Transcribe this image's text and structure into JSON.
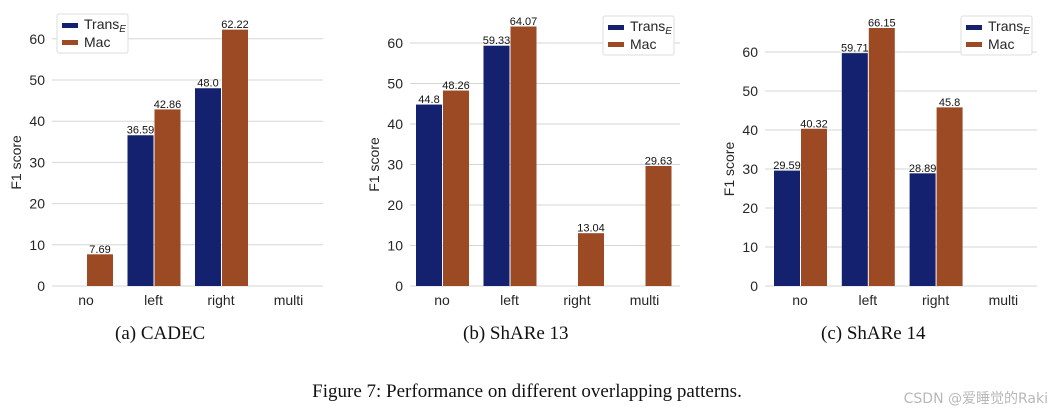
{
  "chart_data": [
    {
      "type": "bar",
      "title": "(a) CADEC",
      "xlabel": "",
      "ylabel": "F1 score",
      "categories": [
        "no",
        "left",
        "right",
        "multi"
      ],
      "series": [
        {
          "name": "Trans_E",
          "color": "#13216e",
          "values": [
            0,
            36.59,
            48.0,
            0
          ],
          "labels": [
            "",
            "36.59",
            "48.0",
            ""
          ]
        },
        {
          "name": "Mac",
          "color": "#9c4a24",
          "values": [
            7.69,
            42.86,
            62.22,
            0
          ],
          "labels": [
            "7.69",
            "42.86",
            "62.22",
            ""
          ]
        }
      ],
      "yticks": [
        0,
        10,
        20,
        30,
        40,
        50,
        60
      ],
      "ylim": [
        0,
        65
      ],
      "grid": true,
      "legend": "top-left"
    },
    {
      "type": "bar",
      "title": "(b) ShARe 13",
      "xlabel": "",
      "ylabel": "F1 score",
      "categories": [
        "no",
        "left",
        "right",
        "multi"
      ],
      "series": [
        {
          "name": "Trans_E",
          "color": "#13216e",
          "values": [
            44.8,
            59.33,
            0,
            0
          ],
          "labels": [
            "44.8",
            "59.33",
            "",
            ""
          ]
        },
        {
          "name": "Mac",
          "color": "#9c4a24",
          "values": [
            48.26,
            64.07,
            13.04,
            29.63
          ],
          "labels": [
            "48.26",
            "64.07",
            "13.04",
            "29.63"
          ]
        }
      ],
      "yticks": [
        0,
        10,
        20,
        30,
        40,
        50,
        60
      ],
      "ylim": [
        0,
        66
      ],
      "grid": true,
      "legend": "top-right"
    },
    {
      "type": "bar",
      "title": "(c) ShARe 14",
      "xlabel": "",
      "ylabel": "F1 score",
      "categories": [
        "no",
        "left",
        "right",
        "multi"
      ],
      "series": [
        {
          "name": "Trans_E",
          "color": "#13216e",
          "values": [
            29.59,
            59.71,
            28.89,
            0
          ],
          "labels": [
            "29.59",
            "59.71",
            "28.89",
            ""
          ]
        },
        {
          "name": "Mac",
          "color": "#9c4a24",
          "values": [
            40.32,
            66.15,
            45.8,
            0
          ],
          "labels": [
            "40.32",
            "66.15",
            "45.8",
            ""
          ]
        }
      ],
      "yticks": [
        0,
        10,
        20,
        30,
        40,
        50,
        60
      ],
      "ylim": [
        0,
        68
      ],
      "grid": true,
      "legend": "top-right"
    }
  ],
  "legend": {
    "trans_main": "Trans",
    "trans_sub": "E",
    "mac": "Mac"
  },
  "subcaptions": [
    "(a)  CADEC",
    "(b)  ShARe 13",
    "(c)  ShARe 14"
  ],
  "caption": "Figure 7: Performance on different overlapping patterns.",
  "watermark": "CSDN @爱睡觉的Raki"
}
